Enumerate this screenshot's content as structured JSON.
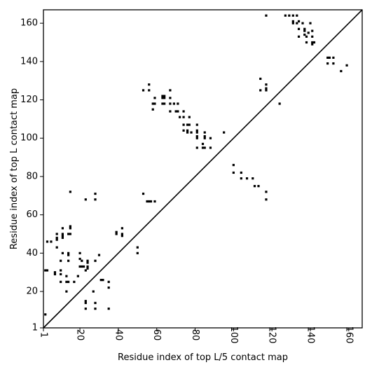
{
  "chart_data": {
    "type": "scatter",
    "title": "",
    "xlabel": "Residue index of top L/5 contact map",
    "ylabel": "Residue index of top L contact map",
    "xlim": [
      1,
      167
    ],
    "ylim": [
      1,
      167
    ],
    "xticks": [
      1,
      20,
      40,
      60,
      80,
      100,
      120,
      140,
      160
    ],
    "yticks": [
      1,
      20,
      40,
      60,
      80,
      100,
      120,
      140,
      160
    ],
    "grid": false,
    "diagonal": true,
    "colors": {
      "points": "#000000",
      "diagonal": "#000000",
      "background": "#ffffff"
    },
    "points": [
      [
        2,
        8
      ],
      [
        2,
        31
      ],
      [
        3,
        31
      ],
      [
        3,
        46
      ],
      [
        5,
        46
      ],
      [
        7,
        30
      ],
      [
        7,
        29
      ],
      [
        8,
        43
      ],
      [
        8,
        47
      ],
      [
        8,
        48
      ],
      [
        8,
        50
      ],
      [
        10,
        31
      ],
      [
        10,
        29
      ],
      [
        10,
        25
      ],
      [
        10,
        36
      ],
      [
        11,
        40
      ],
      [
        11,
        48
      ],
      [
        11,
        49
      ],
      [
        11,
        50
      ],
      [
        11,
        53
      ],
      [
        13,
        20
      ],
      [
        13,
        28
      ],
      [
        13,
        25
      ],
      [
        14,
        25
      ],
      [
        14,
        39
      ],
      [
        14,
        40
      ],
      [
        14,
        36
      ],
      [
        14,
        50
      ],
      [
        15,
        50
      ],
      [
        15,
        53
      ],
      [
        15,
        54
      ],
      [
        15,
        72
      ],
      [
        17,
        25
      ],
      [
        19,
        28
      ],
      [
        20,
        33
      ],
      [
        20,
        37
      ],
      [
        20,
        40
      ],
      [
        21,
        33
      ],
      [
        21,
        36
      ],
      [
        22,
        33
      ],
      [
        23,
        11
      ],
      [
        23,
        14
      ],
      [
        23,
        15
      ],
      [
        23,
        31
      ],
      [
        24,
        35
      ],
      [
        24,
        36
      ],
      [
        24,
        33
      ],
      [
        24,
        32
      ],
      [
        23,
        68
      ],
      [
        27,
        20
      ],
      [
        28,
        36
      ],
      [
        28,
        14
      ],
      [
        28,
        11
      ],
      [
        28,
        68
      ],
      [
        28,
        71
      ],
      [
        30,
        39
      ],
      [
        31,
        26
      ],
      [
        32,
        26
      ],
      [
        35,
        25
      ],
      [
        35,
        22
      ],
      [
        35,
        11
      ],
      [
        39,
        50
      ],
      [
        39,
        51
      ],
      [
        42,
        49
      ],
      [
        42,
        50
      ],
      [
        42,
        53
      ],
      [
        50,
        40
      ],
      [
        50,
        43
      ],
      [
        53,
        71
      ],
      [
        53,
        125
      ],
      [
        55,
        67
      ],
      [
        56,
        67
      ],
      [
        56,
        125
      ],
      [
        56,
        128
      ],
      [
        57,
        67
      ],
      [
        58,
        115
      ],
      [
        58,
        118
      ],
      [
        59,
        67
      ],
      [
        59,
        118
      ],
      [
        59,
        121
      ],
      [
        63,
        118
      ],
      [
        63,
        121
      ],
      [
        63,
        122
      ],
      [
        64,
        118
      ],
      [
        64,
        121
      ],
      [
        64,
        122
      ],
      [
        67,
        114
      ],
      [
        67,
        118
      ],
      [
        67,
        121
      ],
      [
        67,
        125
      ],
      [
        69,
        118
      ],
      [
        70,
        114
      ],
      [
        71,
        114
      ],
      [
        71,
        118
      ],
      [
        72,
        111
      ],
      [
        74,
        104
      ],
      [
        74,
        107
      ],
      [
        74,
        111
      ],
      [
        74,
        114
      ],
      [
        76,
        103
      ],
      [
        76,
        104
      ],
      [
        76,
        107
      ],
      [
        77,
        107
      ],
      [
        77,
        111
      ],
      [
        78,
        103
      ],
      [
        81,
        100
      ],
      [
        81,
        101
      ],
      [
        81,
        103
      ],
      [
        81,
        104
      ],
      [
        81,
        107
      ],
      [
        81,
        95
      ],
      [
        84,
        95
      ],
      [
        84,
        97
      ],
      [
        85,
        100
      ],
      [
        85,
        101
      ],
      [
        85,
        103
      ],
      [
        85,
        95
      ],
      [
        88,
        100
      ],
      [
        88,
        95
      ],
      [
        95,
        103
      ],
      [
        100,
        82
      ],
      [
        100,
        86
      ],
      [
        104,
        79
      ],
      [
        104,
        82
      ],
      [
        107,
        79
      ],
      [
        110,
        79
      ],
      [
        111,
        75
      ],
      [
        113,
        75
      ],
      [
        114,
        131
      ],
      [
        114,
        125
      ],
      [
        117,
        164
      ],
      [
        117,
        125
      ],
      [
        117,
        126
      ],
      [
        117,
        128
      ],
      [
        117,
        72
      ],
      [
        117,
        68
      ],
      [
        124,
        118
      ],
      [
        127,
        164
      ],
      [
        129,
        164
      ],
      [
        131,
        164
      ],
      [
        131,
        160
      ],
      [
        131,
        161
      ],
      [
        133,
        164
      ],
      [
        133,
        160
      ],
      [
        134,
        161
      ],
      [
        134,
        157
      ],
      [
        134,
        153
      ],
      [
        136,
        160
      ],
      [
        137,
        157
      ],
      [
        137,
        156
      ],
      [
        137,
        154
      ],
      [
        138,
        153
      ],
      [
        138,
        150
      ],
      [
        139,
        155
      ],
      [
        140,
        160
      ],
      [
        141,
        153
      ],
      [
        141,
        156
      ],
      [
        141,
        150
      ],
      [
        141,
        149
      ],
      [
        142,
        150
      ],
      [
        149,
        142
      ],
      [
        149,
        139
      ],
      [
        150,
        142
      ],
      [
        152,
        142
      ],
      [
        152,
        139
      ],
      [
        156,
        135
      ],
      [
        159,
        138
      ]
    ]
  }
}
